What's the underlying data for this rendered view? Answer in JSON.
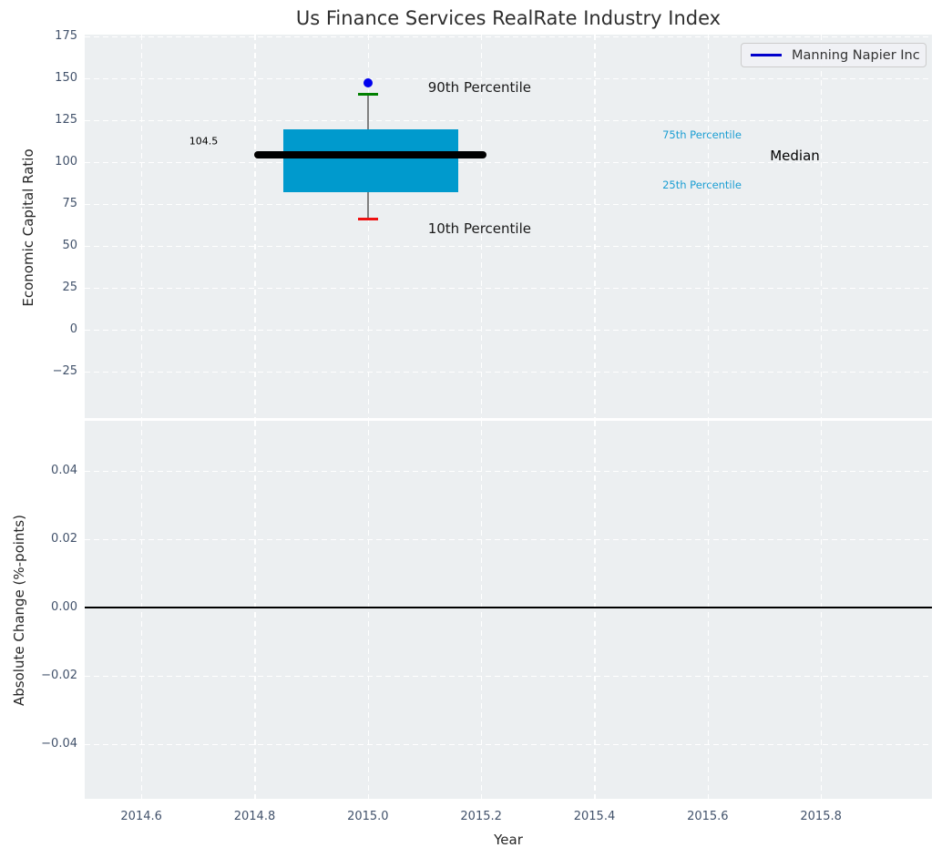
{
  "title": "Us Finance Services RealRate Industry Index",
  "legend": {
    "label": "Manning Napier Inc"
  },
  "colors": {
    "axes_background": "#eceff1",
    "grid": "#ffffff",
    "tick_label": "#42526b",
    "box_fill": "#009acd",
    "median_line": "#000000",
    "p90_cap": "#008000",
    "p10_cap": "#ee1111",
    "whisker": "#808080",
    "scatter_point": "#0000ee",
    "legend_line": "#0000cc",
    "percentile_label": "#1b9ed3",
    "zero_line": "#000000"
  },
  "chart_data": [
    {
      "type": "box",
      "title": "Us Finance Services RealRate Industry Index",
      "ylabel": "Economic Capital Ratio",
      "xlabel": "",
      "xlim": [
        2014.5,
        2015.996
      ],
      "ylim": [
        -52.7,
        176.1
      ],
      "yticks": [
        175,
        150,
        125,
        100,
        75,
        50,
        25,
        0,
        -25
      ],
      "ytick_labels": [
        "175",
        "150",
        "125",
        "100",
        "75",
        "50",
        "25",
        "0",
        "−25"
      ],
      "xticks": [
        2014.6,
        2014.8,
        2015.0,
        2015.2,
        2015.4,
        2015.6,
        2015.8
      ],
      "xtick_labels": [],
      "grid": true,
      "legend_position": "upper right",
      "box": {
        "x_center": 2015.0,
        "box_x_left": 2014.85,
        "box_x_right": 2015.16,
        "median_x_left": 2014.8,
        "median_x_right": 2015.21,
        "cap_half_width": 0.0177,
        "p10": 66,
        "q25": 82,
        "median": 104.5,
        "q75": 119.5,
        "p90": 140.5,
        "median_label": "104.5"
      },
      "series": [
        {
          "name": "Manning Napier Inc",
          "type": "scatter",
          "x": [
            2015.0
          ],
          "y": [
            147.5
          ]
        }
      ],
      "annotations": [
        {
          "text": "90th Percentile",
          "x": 2015.106,
          "y": 144.6,
          "color": "#1a1a1a",
          "size": 15,
          "align": "left"
        },
        {
          "text": "75th Percentile",
          "x": 2015.52,
          "y": 116.3,
          "color": "#1b9ed3",
          "size": 11.5,
          "align": "left"
        },
        {
          "text": "Median",
          "x": 2015.71,
          "y": 103.8,
          "color": "#000000",
          "size": 15,
          "align": "left"
        },
        {
          "text": "25th Percentile",
          "x": 2015.52,
          "y": 86.4,
          "color": "#1b9ed3",
          "size": 11.5,
          "align": "left"
        },
        {
          "text": "10th Percentile",
          "x": 2015.106,
          "y": 60.3,
          "color": "#1a1a1a",
          "size": 15,
          "align": "left"
        },
        {
          "text": "104.5",
          "x": 2014.71,
          "y": 112.5,
          "color": "#000000",
          "size": 11,
          "align": "center"
        }
      ]
    },
    {
      "type": "line",
      "ylabel": "Absolute Change (%-points)",
      "xlabel": "Year",
      "xlim": [
        2014.5,
        2015.996
      ],
      "ylim": [
        -0.056,
        0.0547
      ],
      "yticks": [
        0.04,
        0.02,
        0.0,
        -0.02,
        -0.04
      ],
      "ytick_labels": [
        "0.04",
        "0.02",
        "0.00",
        "−0.02",
        "−0.04"
      ],
      "xticks": [
        2014.6,
        2014.8,
        2015.0,
        2015.2,
        2015.4,
        2015.6,
        2015.8
      ],
      "xtick_labels": [
        "2014.6",
        "2014.8",
        "2015.0",
        "2015.2",
        "2015.4",
        "2015.6",
        "2015.8"
      ],
      "grid": true,
      "zero_line_y": 0.0,
      "series": []
    }
  ]
}
